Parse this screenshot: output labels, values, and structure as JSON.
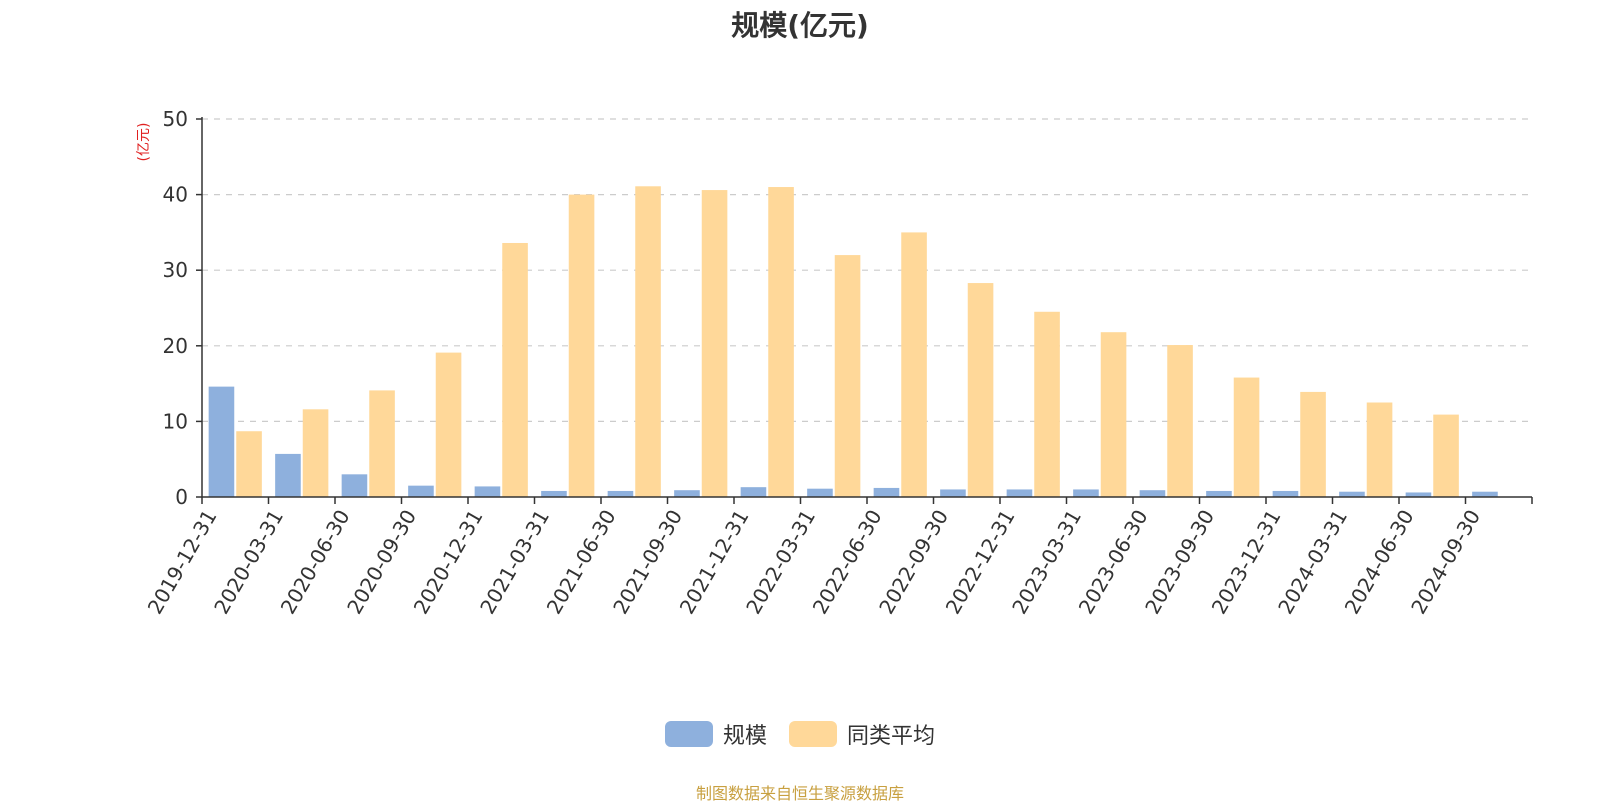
{
  "chart_data": {
    "type": "bar",
    "title": "规模(亿元)",
    "ylabel": "(亿元)",
    "ylim": [
      0,
      50
    ],
    "yticks": [
      0,
      10,
      20,
      30,
      40,
      50
    ],
    "grid": true,
    "legend_position": "bottom-center",
    "categories": [
      "2019-12-31",
      "2020-03-31",
      "2020-06-30",
      "2020-09-30",
      "2020-12-31",
      "2021-03-31",
      "2021-06-30",
      "2021-09-30",
      "2021-12-31",
      "2022-03-31",
      "2022-06-30",
      "2022-09-30",
      "2022-12-31",
      "2023-03-31",
      "2023-06-30",
      "2023-09-30",
      "2023-12-31",
      "2024-03-31",
      "2024-06-30",
      "2024-09-30"
    ],
    "series": [
      {
        "name": "规模",
        "color": "#8eb0dd",
        "values": [
          14.6,
          5.7,
          3.0,
          1.5,
          1.4,
          0.8,
          0.8,
          0.9,
          1.3,
          1.1,
          1.2,
          1.0,
          1.0,
          1.0,
          0.9,
          0.8,
          0.8,
          0.7,
          0.6,
          0.7
        ]
      },
      {
        "name": "同类平均",
        "color": "#ffd899",
        "values": [
          8.7,
          11.6,
          14.1,
          19.1,
          33.6,
          40.0,
          41.1,
          40.6,
          41.0,
          32.0,
          35.0,
          28.3,
          24.5,
          21.8,
          20.1,
          15.8,
          13.9,
          12.5,
          10.9,
          null
        ]
      }
    ]
  },
  "footer": {
    "source": "制图数据来自恒生聚源数据库"
  }
}
